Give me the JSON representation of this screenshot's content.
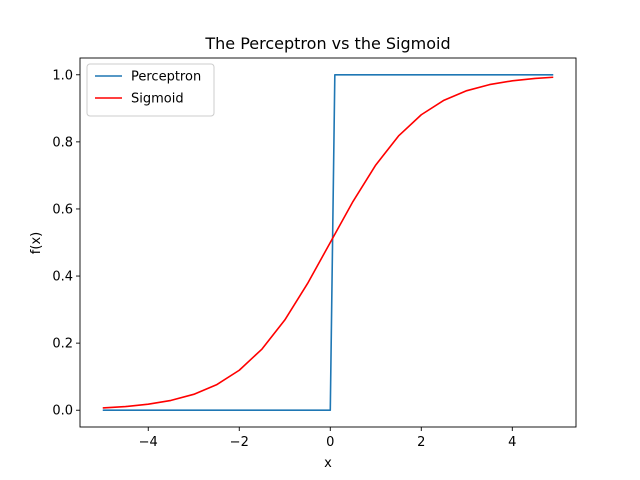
{
  "chart_data": {
    "type": "line",
    "title": "The Perceptron vs the Sigmoid",
    "xlabel": "x",
    "ylabel": "f(x)",
    "xlim": [
      -5.5,
      5.4
    ],
    "ylim": [
      -0.05,
      1.05
    ],
    "x_ticks": [
      -4,
      -2,
      0,
      2,
      4
    ],
    "x_tick_labels": [
      "−4",
      "−2",
      "0",
      "2",
      "4"
    ],
    "y_ticks": [
      0.0,
      0.2,
      0.4,
      0.6,
      0.8,
      1.0
    ],
    "y_tick_labels": [
      "0.0",
      "0.2",
      "0.4",
      "0.6",
      "0.8",
      "1.0"
    ],
    "grid": false,
    "legend_position": "top-left",
    "series": [
      {
        "name": "Perceptron",
        "color": "#1f77b4",
        "x": [
          -5.0,
          0.0,
          0.1,
          4.9
        ],
        "y": [
          0,
          0,
          1,
          1
        ]
      },
      {
        "name": "Sigmoid",
        "color": "#ff0000",
        "x": [
          -5.0,
          -4.5,
          -4.0,
          -3.5,
          -3.0,
          -2.5,
          -2.0,
          -1.5,
          -1.0,
          -0.5,
          0.0,
          0.5,
          1.0,
          1.5,
          2.0,
          2.5,
          3.0,
          3.5,
          4.0,
          4.5,
          4.9
        ],
        "y": [
          0.0067,
          0.011,
          0.018,
          0.0293,
          0.0474,
          0.0759,
          0.1192,
          0.1824,
          0.2689,
          0.3775,
          0.5,
          0.6225,
          0.7311,
          0.8176,
          0.8808,
          0.9241,
          0.9526,
          0.9707,
          0.982,
          0.989,
          0.9926
        ]
      }
    ]
  }
}
